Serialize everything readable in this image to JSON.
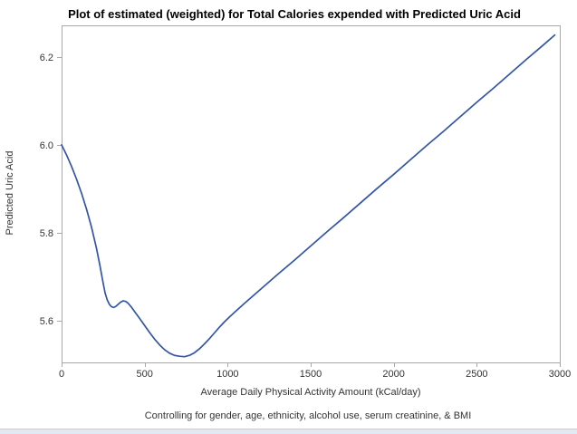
{
  "page": {
    "background": "#ffffff",
    "bottom_strip_color": "#e3e9f3",
    "bottom_strip_border_color": "#c6ccd6"
  },
  "chart_data": {
    "type": "line",
    "title": "Plot of estimated (weighted) for Total Calories expended with Predicted Uric Acid",
    "xlabel": "Average Daily Physical Activity Amount (kCal/day)",
    "ylabel": "Predicted Uric Acid",
    "footnote": "Controlling for gender, age, ethnicity, alcohol use, serum creatinine, & BMI",
    "xlim": [
      0,
      3000
    ],
    "ylim": [
      5.505,
      6.272
    ],
    "grid": false,
    "legend": "none",
    "line_color": "#3355a5",
    "axis_color": "#a8a8a8",
    "text_color": "#333333",
    "title_color": "#000000",
    "xticks": {
      "values": [
        0,
        500,
        1000,
        1500,
        2000,
        2500,
        3000
      ],
      "labels": [
        "0",
        "500",
        "1000",
        "1500",
        "2000",
        "2500",
        "3000"
      ]
    },
    "yticks": {
      "values": [
        5.6,
        5.8,
        6.0,
        6.2
      ],
      "labels": [
        "5.6",
        "5.8",
        "6.0",
        "6.2"
      ]
    },
    "series": [
      {
        "name": "estimated (weighted)",
        "x": [
          0,
          30,
          60,
          90,
          120,
          150,
          180,
          210,
          230,
          248,
          262,
          275,
          288,
          300,
          312,
          325,
          340,
          355,
          370,
          385,
          400,
          420,
          445,
          470,
          500,
          530,
          560,
          590,
          620,
          650,
          680,
          710,
          740,
          770,
          800,
          830,
          860,
          890,
          920,
          950,
          980,
          1010,
          1050,
          1100,
          1200,
          1300,
          1400,
          1500,
          1600,
          1700,
          1800,
          1900,
          2000,
          2100,
          2200,
          2300,
          2400,
          2500,
          2600,
          2700,
          2800,
          2900,
          2970
        ],
        "y": [
          6.0,
          5.977,
          5.951,
          5.922,
          5.89,
          5.854,
          5.813,
          5.765,
          5.727,
          5.69,
          5.663,
          5.647,
          5.637,
          5.632,
          5.63,
          5.632,
          5.637,
          5.642,
          5.645,
          5.644,
          5.64,
          5.631,
          5.618,
          5.605,
          5.589,
          5.573,
          5.558,
          5.545,
          5.534,
          5.526,
          5.521,
          5.519,
          5.518,
          5.521,
          5.527,
          5.536,
          5.547,
          5.559,
          5.572,
          5.585,
          5.597,
          5.608,
          5.622,
          5.639,
          5.672,
          5.705,
          5.737,
          5.77,
          5.803,
          5.835,
          5.868,
          5.901,
          5.933,
          5.966,
          5.999,
          6.031,
          6.064,
          6.097,
          6.129,
          6.162,
          6.195,
          6.227,
          6.25
        ]
      }
    ],
    "key_points": {
      "curve_start": [
        0,
        6.0
      ],
      "local_min": [
        310,
        5.63
      ],
      "local_max": [
        375,
        5.645
      ],
      "global_min": [
        720,
        5.52
      ],
      "curve_end": [
        2970,
        6.25
      ]
    }
  }
}
